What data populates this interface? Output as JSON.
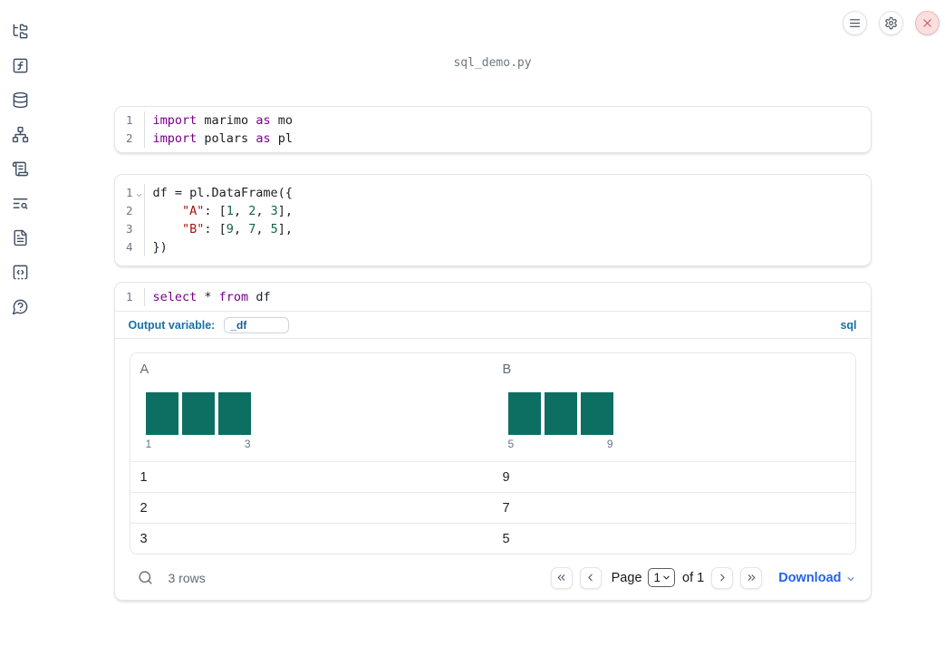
{
  "colors": {
    "accent_blue": "#1a6fa5",
    "accent_blue_dark": "#1b5e8f",
    "link_blue": "#2563eb",
    "bar_teal": "#0d6e62",
    "keyword": "#770088",
    "string": "#aa1111",
    "number": "#116644",
    "danger": "#d25757"
  },
  "sidebar": {
    "icons": [
      "file-explorer",
      "variables",
      "datasources",
      "dependency-graph",
      "outline",
      "logs",
      "documentation",
      "snippets",
      "help"
    ]
  },
  "topbar": {
    "icons": [
      "menu",
      "settings",
      "close"
    ]
  },
  "header": {
    "filename": "sql_demo.py"
  },
  "cells": {
    "imports": {
      "lines": [
        {
          "n": "1",
          "toks": [
            [
              "import",
              "kw"
            ],
            [
              " marimo ",
              "pl"
            ],
            [
              "as",
              "kw"
            ],
            [
              " mo",
              "pl"
            ]
          ]
        },
        {
          "n": "2",
          "toks": [
            [
              "import",
              "kw"
            ],
            [
              " polars ",
              "pl"
            ],
            [
              "as",
              "kw"
            ],
            [
              " pl",
              "pl"
            ]
          ]
        }
      ]
    },
    "dataframe": {
      "lines": [
        {
          "n": "1",
          "fold": true,
          "toks": [
            [
              "df = pl.DataFrame({",
              "pl"
            ]
          ]
        },
        {
          "n": "2",
          "toks": [
            [
              "    ",
              "pl"
            ],
            [
              "\"A\"",
              "str"
            ],
            [
              ": [",
              "pl"
            ],
            [
              "1",
              "num"
            ],
            [
              ", ",
              "pl"
            ],
            [
              "2",
              "num"
            ],
            [
              ", ",
              "pl"
            ],
            [
              "3",
              "num"
            ],
            [
              "],",
              "pl"
            ]
          ]
        },
        {
          "n": "3",
          "toks": [
            [
              "    ",
              "pl"
            ],
            [
              "\"B\"",
              "str"
            ],
            [
              ": [",
              "pl"
            ],
            [
              "9",
              "num"
            ],
            [
              ", ",
              "pl"
            ],
            [
              "7",
              "num"
            ],
            [
              ", ",
              "pl"
            ],
            [
              "5",
              "num"
            ],
            [
              "],",
              "pl"
            ]
          ]
        },
        {
          "n": "4",
          "toks": [
            [
              "})",
              "pl"
            ]
          ]
        }
      ]
    },
    "sql": {
      "lines": [
        {
          "n": "1",
          "toks": [
            [
              "select",
              "kw"
            ],
            [
              " * ",
              "pl"
            ],
            [
              "from",
              "kw"
            ],
            [
              " df",
              "pl"
            ]
          ]
        }
      ],
      "output_variable_label": "Output variable:",
      "output_variable_value": "_df",
      "language_badge": "sql"
    }
  },
  "table": {
    "columns": [
      {
        "label": "A",
        "hist": {
          "bars": 3,
          "labels": [
            "1",
            "3"
          ]
        }
      },
      {
        "label": "B",
        "hist": {
          "bars": 3,
          "labels": [
            "5",
            "9"
          ]
        }
      }
    ],
    "rows": [
      [
        "1",
        "9"
      ],
      [
        "2",
        "7"
      ],
      [
        "3",
        "5"
      ]
    ],
    "footer": {
      "row_count": "3 rows",
      "page_label": "Page",
      "page_value": "1",
      "of_label": "of 1",
      "download_label": "Download"
    }
  }
}
